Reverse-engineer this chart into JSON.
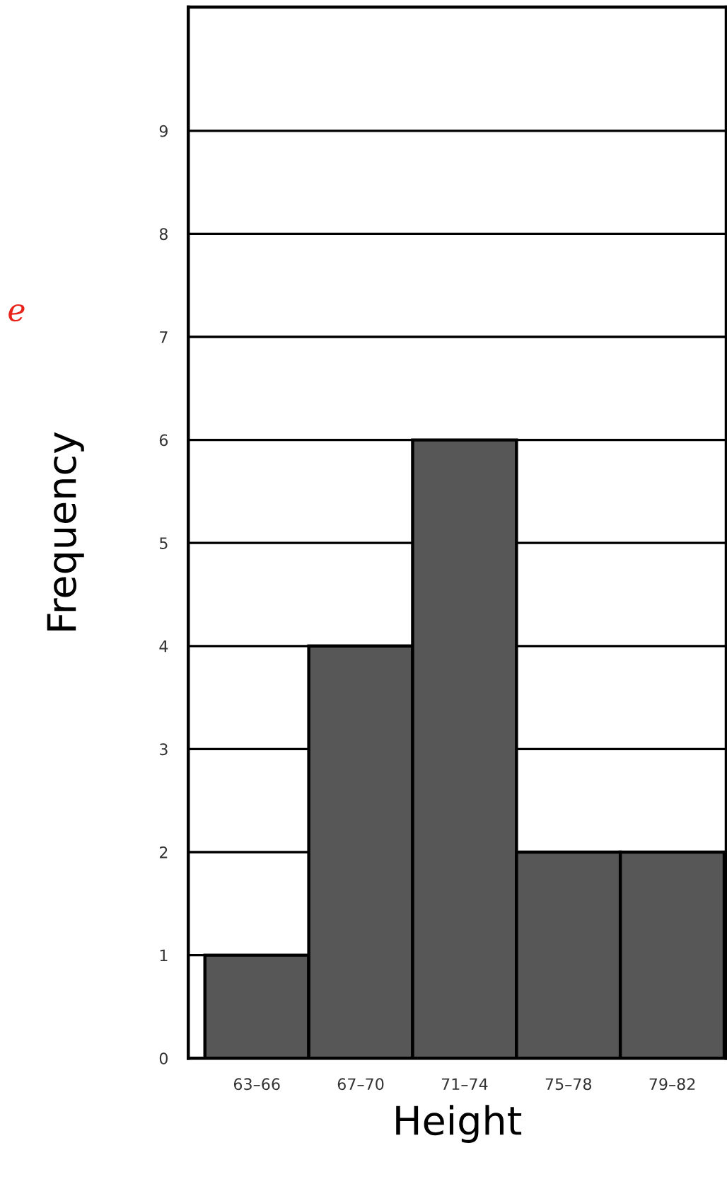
{
  "chart_data": {
    "type": "bar",
    "categories": [
      "63–66",
      "67–70",
      "71–74",
      "75–78",
      "79–82"
    ],
    "values": [
      1,
      4,
      6,
      2,
      2
    ],
    "color": "#575757",
    "xlabel": "Height",
    "ylabel": "Frequency",
    "ylim": [
      0,
      10.2
    ],
    "yticks": [
      0,
      1,
      2,
      3,
      4,
      5,
      6,
      7,
      8,
      9
    ],
    "grid": "y",
    "annotations": [
      "e"
    ]
  }
}
